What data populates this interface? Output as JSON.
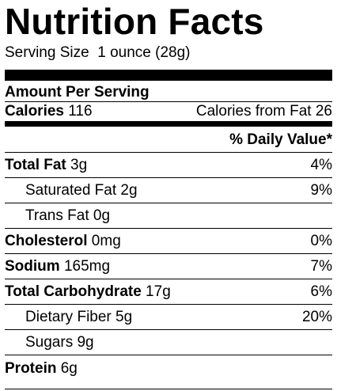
{
  "label": {
    "title": "Nutrition Facts",
    "serving_size": "Serving Size  1 ounce (28g)",
    "amount_per_serving": "Amount Per Serving",
    "calories_label": "Calories",
    "calories_value": " 116",
    "calories_from_fat": "Calories from Fat 26",
    "daily_value_header": "% Daily Value*",
    "nutrients": [
      {
        "name": "Total Fat",
        "amount": " 3g",
        "dv": "4%"
      },
      {
        "name": "Saturated Fat",
        "amount": " 2g",
        "dv": "9%"
      },
      {
        "name": "Trans Fat",
        "amount": " 0g",
        "dv": ""
      },
      {
        "name": "Cholesterol",
        "amount": " 0mg",
        "dv": "0%"
      },
      {
        "name": "Sodium",
        "amount": " 165mg",
        "dv": "7%"
      },
      {
        "name": "Total Carbohydrate",
        "amount": " 17g",
        "dv": "6%"
      },
      {
        "name": "Dietary Fiber",
        "amount": " 5g",
        "dv": "20%"
      },
      {
        "name": "Sugars",
        "amount": " 9g",
        "dv": ""
      },
      {
        "name": "Protein",
        "amount": " 6g",
        "dv": ""
      }
    ]
  }
}
